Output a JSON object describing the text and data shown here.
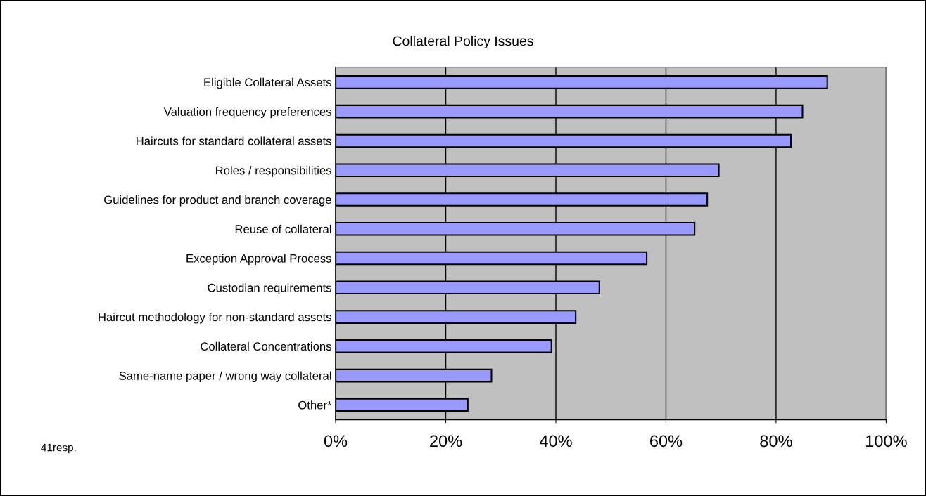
{
  "chart_data": {
    "type": "bar",
    "orientation": "horizontal",
    "title": "Collateral Policy Issues",
    "categories": [
      "Eligible Collateral Assets",
      "Valuation frequency preferences",
      "Haircuts for standard collateral assets",
      "Roles / responsibilities",
      "Guidelines for product and branch coverage",
      "Reuse of collateral",
      "Exception Approval Process",
      "Custodian requirements",
      "Haircut methodology for non-standard assets",
      "Collateral Concentrations",
      "Same-name paper / wrong way collateral",
      "Other*"
    ],
    "values": [
      89.3,
      84.8,
      82.7,
      69.6,
      67.5,
      65.2,
      56.5,
      47.9,
      43.6,
      39.2,
      28.3,
      24.0
    ],
    "color": "#9999ff",
    "xlim": [
      0,
      100
    ],
    "xticks": [
      {
        "value": 0,
        "label": "0%"
      },
      {
        "value": 20,
        "label": "20%"
      },
      {
        "value": 40,
        "label": "40%"
      },
      {
        "value": 60,
        "label": "60%"
      },
      {
        "value": 80,
        "label": "80%"
      },
      {
        "value": 100,
        "label": "100%"
      }
    ],
    "grid": "x",
    "legend": false,
    "annotations": [
      "41resp."
    ]
  }
}
